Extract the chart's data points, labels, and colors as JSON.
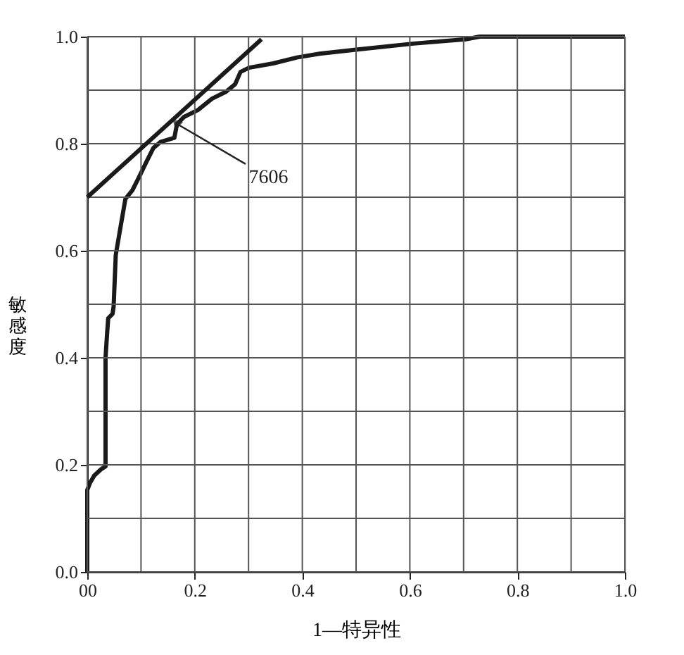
{
  "chart_data": {
    "type": "line",
    "xlabel": "1—特异性",
    "ylabel": "敏感度",
    "series": [
      {
        "color": "#1a1a1a",
        "x": [
          0,
          0,
          0.005,
          0.013,
          0.026,
          0.034,
          0.034,
          0.037,
          0.039,
          0.047,
          0.049,
          0.053,
          0.062,
          0.071,
          0.084,
          0.097,
          0.11,
          0.123,
          0.136,
          0.162,
          0.167,
          0.18,
          0.206,
          0.232,
          0.258,
          0.275,
          0.285,
          0.301,
          0.346,
          0.39,
          0.432,
          0.503,
          0.607,
          0.704,
          0.73,
          1.0
        ],
        "values": [
          0,
          0.153,
          0.166,
          0.18,
          0.192,
          0.197,
          0.4,
          0.447,
          0.474,
          0.482,
          0.495,
          0.592,
          0.645,
          0.697,
          0.713,
          0.739,
          0.766,
          0.792,
          0.803,
          0.811,
          0.837,
          0.85,
          0.863,
          0.884,
          0.897,
          0.911,
          0.934,
          0.942,
          0.95,
          0.961,
          0.968,
          0.976,
          0.987,
          0.995,
          1.0,
          1.0
        ]
      },
      {
        "color": "#1a1a1a",
        "x": [
          0,
          0.324
        ],
        "values": [
          0.7,
          0.995
        ]
      }
    ],
    "annotations": [
      {
        "text": "7606",
        "x": 0.167,
        "y": 0.837
      }
    ],
    "xlim": [
      0,
      1
    ],
    "ylim": [
      0,
      1
    ],
    "xticks": [
      {
        "value": 0,
        "label": "00"
      },
      {
        "value": 0.1,
        "label": null
      },
      0.2,
      {
        "value": 0.3,
        "label": null
      },
      0.4,
      {
        "value": 0.5,
        "label": null
      },
      0.6,
      {
        "value": 0.7,
        "label": null
      },
      0.8,
      {
        "value": 0.9,
        "label": null
      },
      {
        "value": 1,
        "label": "1.0"
      }
    ],
    "yticks": [
      {
        "value": 0,
        "label": "0.0"
      },
      {
        "value": 0.1,
        "label": null
      },
      0.2,
      {
        "value": 0.3,
        "label": null
      },
      0.4,
      {
        "value": 0.5,
        "label": null
      },
      0.6,
      {
        "value": 0.7,
        "label": null
      },
      0.8,
      {
        "value": 0.9,
        "label": null
      },
      {
        "value": 1,
        "label": "1.0"
      }
    ],
    "grid": true,
    "marker": "none",
    "line_style": "solid"
  }
}
